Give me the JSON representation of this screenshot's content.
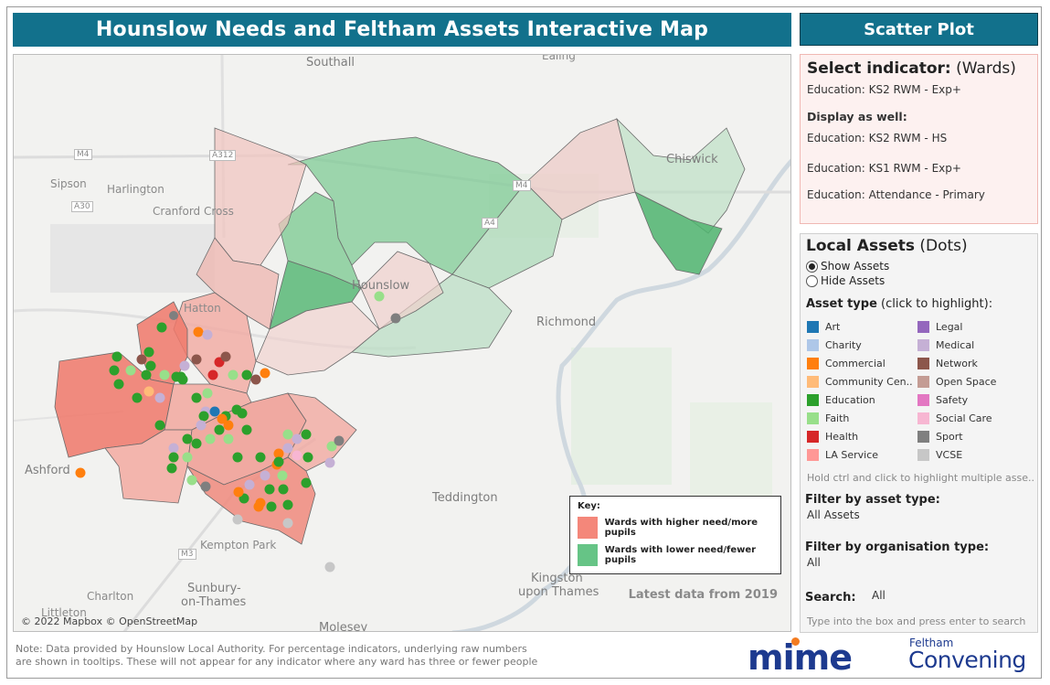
{
  "header": {
    "title": "Hounslow Needs and Feltham Assets Interactive Map",
    "scatter_label": "Scatter Plot"
  },
  "map": {
    "places": {
      "southall": "Southall",
      "ealing": "Ealing",
      "sipson": "Sipson",
      "harlington": "Harlington",
      "cranford": "Cranford Cross",
      "hounslow": "Hounslow",
      "hatton": "Hatton",
      "richmond": "Richmond",
      "chiswick": "Chiswick",
      "ashford": "Ashford",
      "teddington": "Teddington",
      "kempton": "Kempton Park",
      "sunbury1": "Sunbury-",
      "sunbury2": "on-Thames",
      "charlton": "Charlton",
      "kingston1": "Kingston",
      "kingston2": "upon Thames",
      "littleton": "Littleton",
      "molesey": "Molesey",
      "m4": "M4",
      "a312": "A312",
      "m3": "M3",
      "a4": "A4",
      "a30": "A30",
      "m4b": "M4"
    },
    "copyright": "© 2022 Mapbox © OpenStreetMap",
    "latest": "Latest data from 2019",
    "key": {
      "title": "Key:",
      "high": "Wards with higher need/more pupils",
      "low": "Wards with lower need/fewer pupils",
      "high_color": "#f4877a",
      "low_color": "#66c486"
    }
  },
  "indicator": {
    "title_bold": "Select indicator:",
    "title_rest": "(Wards)",
    "selected": "Education: KS2 RWM - Exp+",
    "display_label": "Display as well:",
    "also": [
      "Education: KS2 RWM - HS",
      "Education: KS1 RWM - Exp+",
      "Education: Attendance - Primary"
    ]
  },
  "assets": {
    "title_bold": "Local Assets",
    "title_rest": "(Dots)",
    "show": "Show Assets",
    "hide": "Hide Assets",
    "type_bold": "Asset type",
    "type_rest": "(click to highlight):",
    "types": [
      {
        "label": "Art",
        "color": "#1f77b4"
      },
      {
        "label": "Charity",
        "color": "#aec7e8"
      },
      {
        "label": "Commercial",
        "color": "#ff7f0e"
      },
      {
        "label": "Community Cen..",
        "color": "#ffbb78"
      },
      {
        "label": "Education",
        "color": "#2ca02c"
      },
      {
        "label": "Faith",
        "color": "#98df8a"
      },
      {
        "label": "Health",
        "color": "#d62728"
      },
      {
        "label": "LA Service",
        "color": "#ff9896"
      },
      {
        "label": "Legal",
        "color": "#9467bd"
      },
      {
        "label": "Medical",
        "color": "#c5b0d5"
      },
      {
        "label": "Network",
        "color": "#8c564b"
      },
      {
        "label": "Open Space",
        "color": "#c49c94"
      },
      {
        "label": "Safety",
        "color": "#e377c2"
      },
      {
        "label": "Social Care",
        "color": "#f7b6d2"
      },
      {
        "label": "Sport",
        "color": "#7f7f7f"
      },
      {
        "label": "VCSE",
        "color": "#c7c7c7"
      }
    ],
    "hint": "Hold ctrl and click to highlight multiple asse..",
    "filter_type_label": "Filter by asset type:",
    "filter_type_value": "All Assets",
    "filter_org_label": "Filter by organisation type:",
    "filter_org_value": "All",
    "search_label": "Search:",
    "search_value": "All",
    "search_hint": "Type into the box and press enter to search"
  },
  "footer": {
    "note1": "Note: Data provided by Hounslow Local Authority. For percentage indicators, underlying raw numbers",
    "note2": "are shown in tooltips. These will not appear for any indicator where any ward has three or fewer people",
    "logo1": "mime",
    "logo2_small": "Feltham",
    "logo2_big": "Convening"
  }
}
